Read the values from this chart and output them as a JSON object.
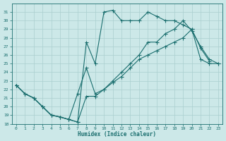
{
  "title": "",
  "xlabel": "Humidex (Indice chaleur)",
  "bg_color": "#cce8e8",
  "line_color": "#1a6e6e",
  "grid_color": "#aacfcf",
  "xlim": [
    -0.5,
    23.5
  ],
  "ylim": [
    18,
    32
  ],
  "yticks": [
    18,
    19,
    20,
    21,
    22,
    23,
    24,
    25,
    26,
    27,
    28,
    29,
    30,
    31
  ],
  "xticks": [
    0,
    1,
    2,
    3,
    4,
    5,
    6,
    7,
    8,
    9,
    10,
    11,
    12,
    13,
    14,
    15,
    16,
    17,
    18,
    19,
    20,
    21,
    22,
    23
  ],
  "line1_x": [
    0,
    1,
    2,
    3,
    4,
    5,
    6,
    7,
    8,
    9,
    10,
    11,
    12,
    13,
    14,
    15,
    16,
    17,
    18,
    19,
    20,
    21,
    22
  ],
  "line1_y": [
    22.5,
    21.5,
    21.0,
    20.0,
    19.0,
    18.8,
    18.5,
    18.2,
    27.5,
    25.0,
    31.0,
    31.2,
    30.0,
    30.0,
    30.0,
    31.0,
    30.5,
    30.0,
    30.0,
    29.5,
    29.0,
    26.8,
    25.3
  ],
  "line2_x": [
    0,
    1,
    2,
    3,
    4,
    5,
    6,
    7,
    8,
    9,
    10,
    11,
    12,
    13,
    14,
    15,
    16,
    17,
    18,
    19,
    20,
    21,
    22,
    23
  ],
  "line2_y": [
    22.5,
    21.5,
    21.0,
    20.0,
    19.0,
    18.8,
    18.5,
    21.5,
    24.5,
    21.5,
    22.0,
    23.0,
    24.0,
    25.0,
    26.0,
    27.5,
    27.5,
    28.5,
    29.0,
    30.0,
    28.8,
    27.0,
    25.5,
    25.0
  ],
  "line3_x": [
    0,
    1,
    2,
    3,
    4,
    5,
    6,
    7,
    8,
    9,
    10,
    11,
    12,
    13,
    14,
    15,
    16,
    17,
    18,
    19,
    20,
    21,
    22,
    23
  ],
  "line3_y": [
    22.5,
    21.5,
    21.0,
    20.0,
    19.0,
    18.8,
    18.5,
    18.2,
    21.2,
    21.2,
    22.0,
    22.8,
    23.5,
    24.5,
    25.5,
    26.0,
    26.5,
    27.0,
    27.5,
    28.0,
    29.0,
    25.5,
    25.0,
    25.0
  ]
}
